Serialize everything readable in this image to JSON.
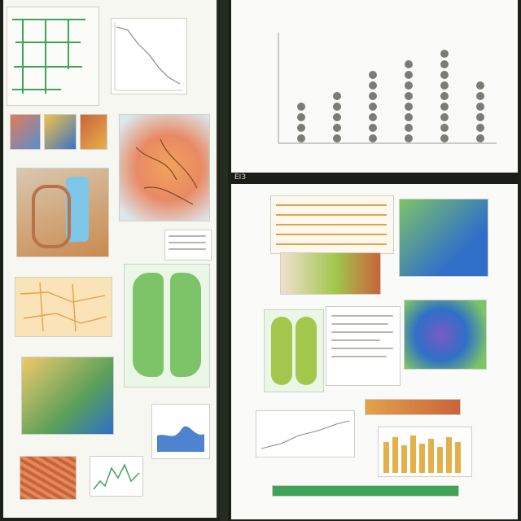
{
  "bottom_label": "EI3",
  "colors": {
    "green": "#3fa35a",
    "orange": "#e3a24a",
    "blue": "#2f6fc7",
    "gray": "#7c7c76"
  },
  "chart_data": {
    "type": "scatter",
    "title": "",
    "xlabel": "",
    "ylabel": "",
    "categories": [
      "",
      "",
      "",
      "",
      "",
      ""
    ],
    "values": [
      4,
      5,
      7,
      8,
      9,
      6
    ],
    "ylim": [
      0,
      10
    ],
    "grid": false
  }
}
